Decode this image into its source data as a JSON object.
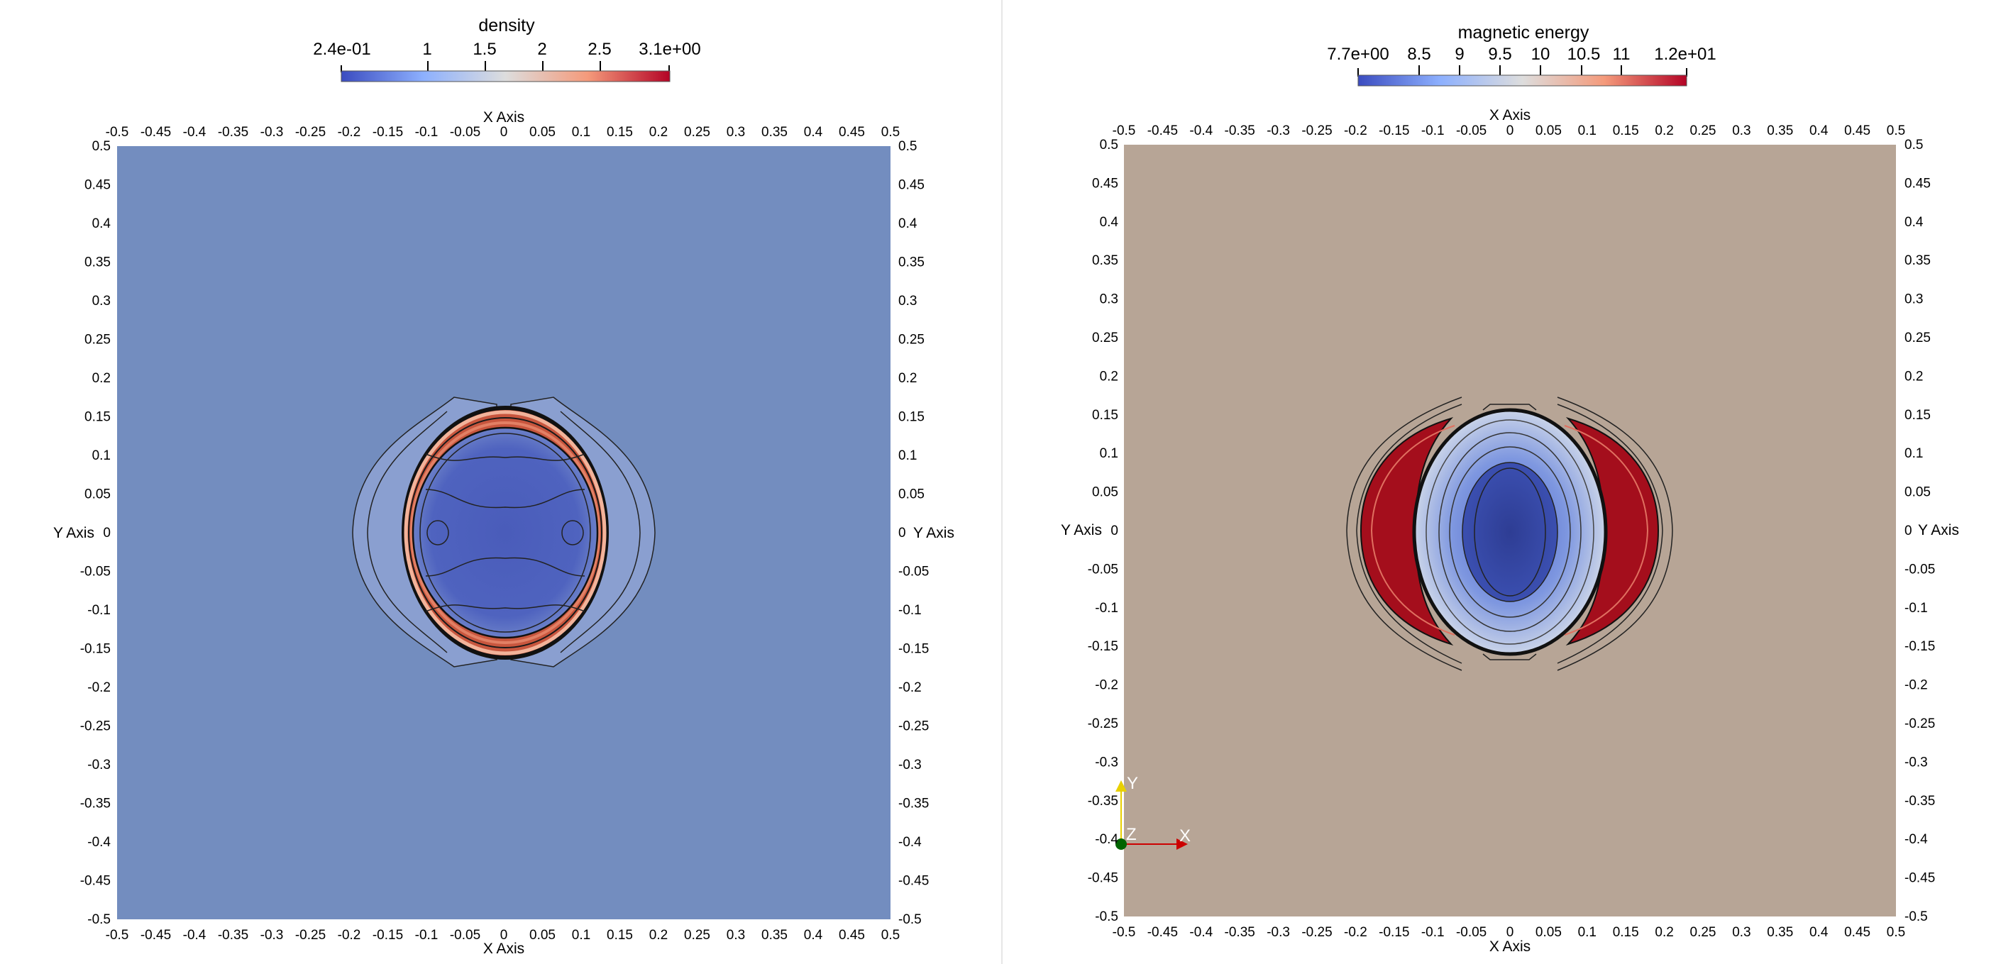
{
  "left_view": {
    "colorbar": {
      "title": "density",
      "labels": [
        "2.4e-01",
        "1",
        "1.5",
        "2",
        "2.5",
        "3.1e+00"
      ],
      "colors": [
        "#3b4cc0",
        "#dddddd",
        "#b40426"
      ]
    },
    "x_axis_title": "X Axis",
    "y_axis_title": "Y Axis",
    "ticks": [
      "-0.5",
      "-0.45",
      "-0.4",
      "-0.35",
      "-0.3",
      "-0.25",
      "-0.2",
      "-0.15",
      "-0.1",
      "-0.05",
      "0",
      "0.05",
      "0.1",
      "0.15",
      "0.2",
      "0.25",
      "0.3",
      "0.35",
      "0.4",
      "0.45",
      "0.5"
    ],
    "background_color": "#738dbf"
  },
  "right_view": {
    "colorbar": {
      "title": "magnetic energy",
      "labels": [
        "7.7e+00",
        "8.5",
        "9",
        "9.5",
        "10",
        "10.5",
        "11",
        "1.2e+01"
      ],
      "colors": [
        "#3b4cc0",
        "#dddddd",
        "#b40426"
      ]
    },
    "x_axis_title": "X Axis",
    "y_axis_title": "Y Axis",
    "ticks": [
      "-0.5",
      "-0.45",
      "-0.4",
      "-0.35",
      "-0.3",
      "-0.25",
      "-0.2",
      "-0.15",
      "-0.1",
      "-0.05",
      "0",
      "0.05",
      "0.1",
      "0.15",
      "0.2",
      "0.25",
      "0.3",
      "0.35",
      "0.4",
      "0.45",
      "0.5"
    ],
    "background_color": "#b7a596",
    "orientation_axes": {
      "x": "X",
      "y": "Y",
      "z": "Z"
    }
  }
}
